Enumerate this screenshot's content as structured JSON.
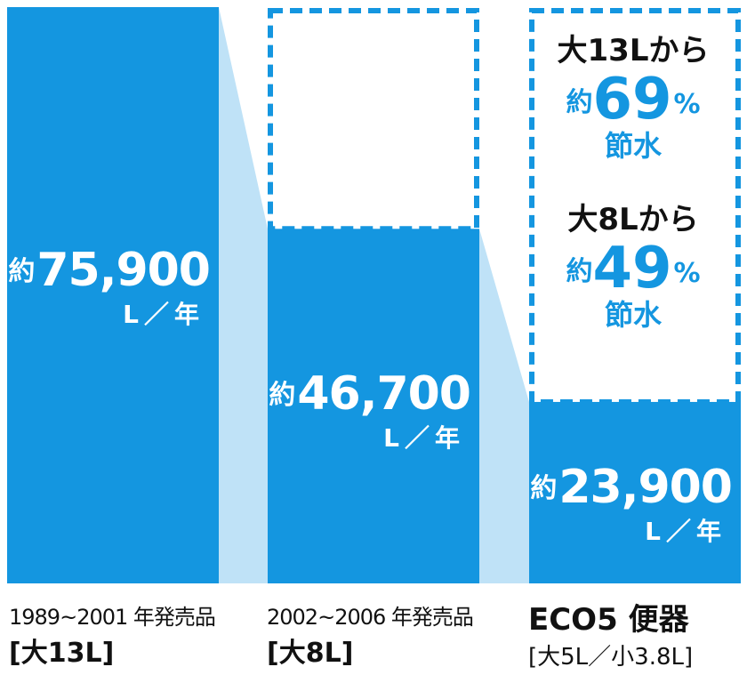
{
  "chart_data": {
    "type": "bar",
    "categories": [
      "大13L",
      "大8L",
      "ECO5 便器"
    ],
    "values": [
      75900,
      46700,
      23900
    ],
    "ylim": [
      0,
      75900
    ],
    "bars": [
      {
        "prefix": "約",
        "value_text": "75,900",
        "unit": "L／年",
        "period": "1989~2001 年発売品",
        "tank": "[大13L]"
      },
      {
        "prefix": "約",
        "value_text": "46,700",
        "unit": "L／年",
        "period": "2002~2006 年発売品",
        "tank": "[大8L]"
      },
      {
        "prefix": "約",
        "value_text": "23,900",
        "unit": "L／年",
        "name": "ECO5 便器",
        "tank": "[大5L／小3.8L]"
      }
    ],
    "savings": [
      {
        "from": "大13Lから",
        "prefix": "約",
        "percent": "69",
        "symbol": "%",
        "word": "節水"
      },
      {
        "from": "大8Lから",
        "prefix": "約",
        "percent": "49",
        "symbol": "%",
        "word": "節水"
      }
    ],
    "colors": {
      "bar": "#1496e0",
      "connector": "#bfe2f7",
      "dashed_outline": "#1496e0",
      "text_dark": "#111111"
    },
    "grid": false,
    "legend": "none"
  }
}
